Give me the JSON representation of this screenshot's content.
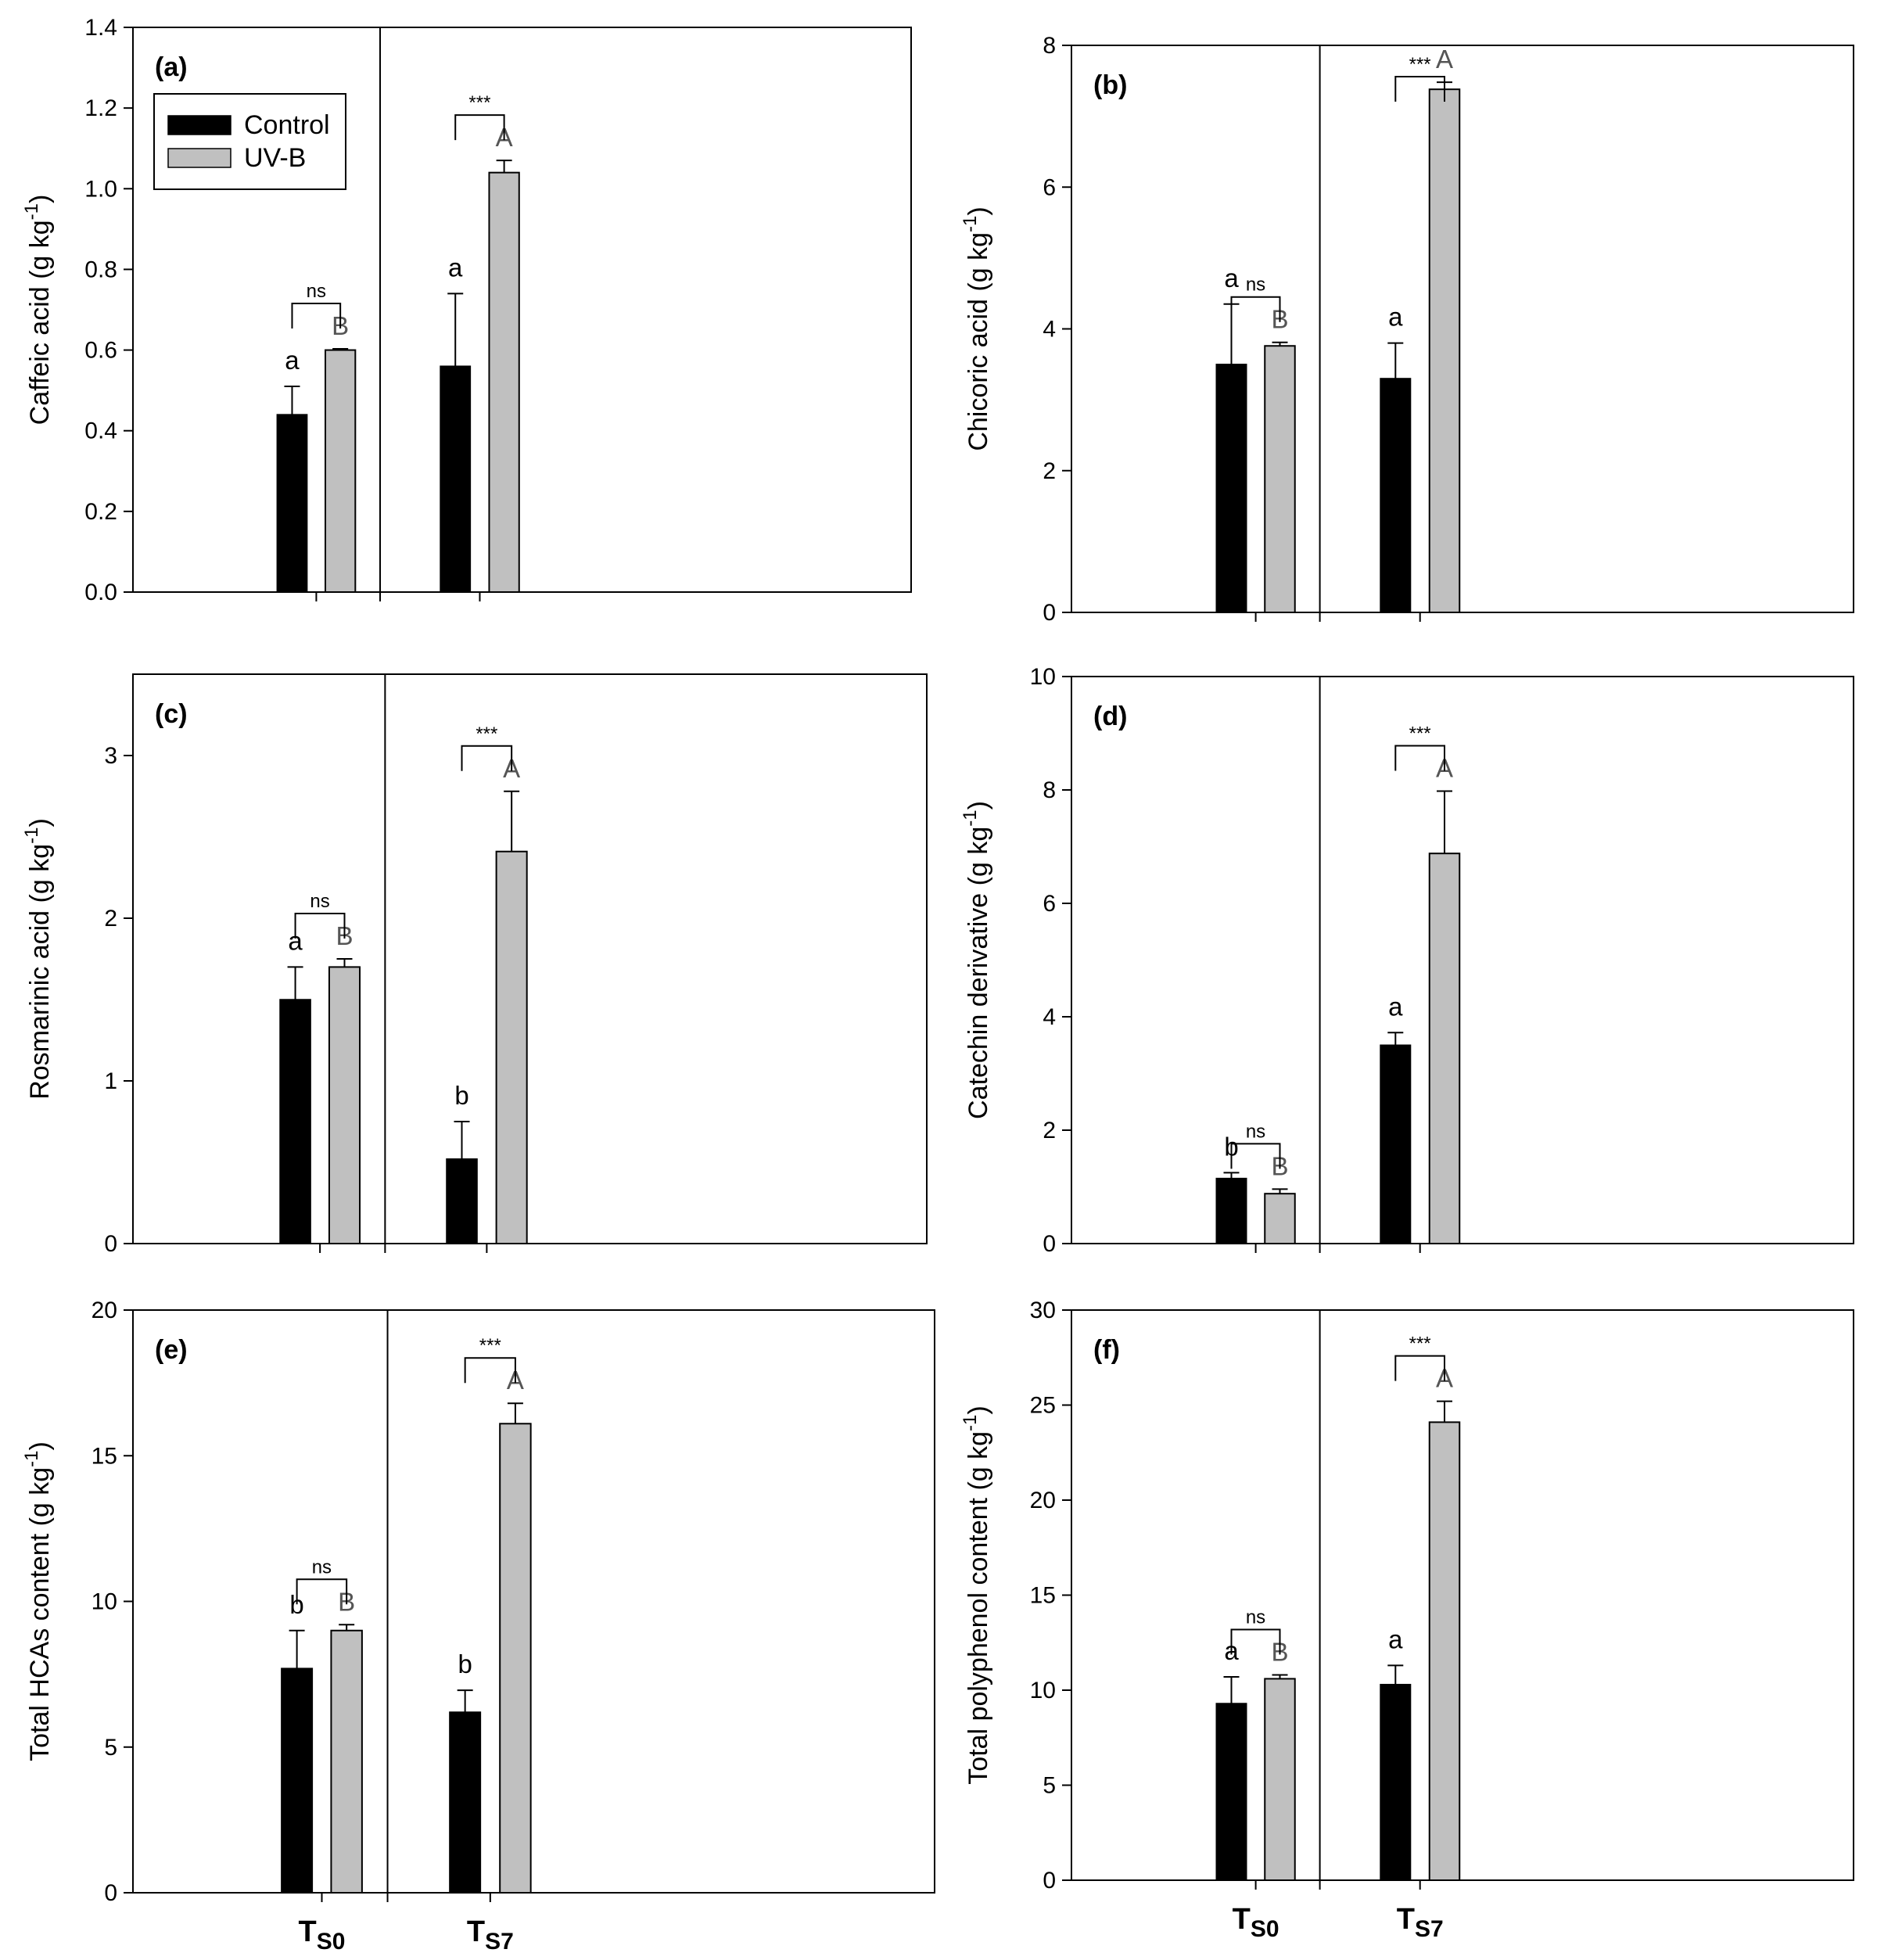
{
  "colors": {
    "control": "#000000",
    "uvb": "#c0c0c0",
    "axis": "#000000",
    "upper_letter": "#555555"
  },
  "legend": {
    "items": [
      {
        "label": "Control",
        "color": "#000000"
      },
      {
        "label": "UV-B",
        "color": "#c0c0c0"
      }
    ]
  },
  "group_labels": [
    {
      "main": "T",
      "sub": "S0"
    },
    {
      "main": "T",
      "sub": "S7"
    }
  ],
  "chart_data": [
    {
      "type": "bar",
      "panel": "(a)",
      "ylabel": "Caffeic acid (g kg-1)",
      "ylabel_main": "Caffeic acid (g kg",
      "ylabel_sup": "-1",
      "ylabel_end": ")",
      "ylim": [
        0,
        1.4
      ],
      "yticks": [
        0.0,
        0.2,
        0.4,
        0.6,
        0.8,
        1.0,
        1.2,
        1.4
      ],
      "ytick_labels": [
        "0.0",
        "0.2",
        "0.4",
        "0.6",
        "0.8",
        "1.0",
        "1.2",
        "1.4"
      ],
      "categories": [
        "TS0",
        "TS7"
      ],
      "series": [
        {
          "name": "Control",
          "values": [
            0.44,
            0.56
          ],
          "errors": [
            0.07,
            0.18
          ]
        },
        {
          "name": "UV-B",
          "values": [
            0.6,
            1.04
          ],
          "errors": [
            0.003,
            0.03
          ]
        }
      ],
      "letters_control": [
        "a",
        "a"
      ],
      "letters_uvb": [
        "B",
        "A"
      ],
      "significance": [
        "ns",
        "***"
      ],
      "legend": true,
      "grid": false
    },
    {
      "type": "bar",
      "panel": "(b)",
      "ylabel": "Chicoric acid (g kg-1)",
      "ylabel_main": "Chicoric acid (g kg",
      "ylabel_sup": "-1",
      "ylabel_end": ")",
      "ylim": [
        0,
        8
      ],
      "yticks": [
        0,
        2,
        4,
        6,
        8
      ],
      "ytick_labels": [
        "0",
        "2",
        "4",
        "6",
        "8"
      ],
      "categories": [
        "TS0",
        "TS7"
      ],
      "series": [
        {
          "name": "Control",
          "values": [
            3.5,
            3.3
          ],
          "errors": [
            0.85,
            0.5
          ]
        },
        {
          "name": "UV-B",
          "values": [
            3.76,
            7.38
          ],
          "errors": [
            0.05,
            0.1
          ]
        }
      ],
      "letters_control": [
        "a",
        "a"
      ],
      "letters_uvb": [
        "B",
        "A"
      ],
      "significance": [
        "ns",
        "***"
      ],
      "legend": false,
      "grid": false
    },
    {
      "type": "bar",
      "panel": "(c)",
      "ylabel": "Rosmarinic acid (g kg-1)",
      "ylabel_main": "Rosmarinic acid (g kg",
      "ylabel_sup": "-1",
      "ylabel_end": ")",
      "ylim": [
        0,
        3.5
      ],
      "yticks": [
        0,
        1,
        2,
        3
      ],
      "ytick_labels": [
        "0",
        "1",
        "2",
        "3"
      ],
      "categories": [
        "TS0",
        "TS7"
      ],
      "series": [
        {
          "name": "Control",
          "values": [
            1.5,
            0.52
          ],
          "errors": [
            0.2,
            0.23
          ]
        },
        {
          "name": "UV-B",
          "values": [
            1.7,
            2.41
          ],
          "errors": [
            0.05,
            0.37
          ]
        }
      ],
      "letters_control": [
        "a",
        "b"
      ],
      "letters_uvb": [
        "B",
        "A"
      ],
      "significance": [
        "ns",
        "***"
      ],
      "legend": false,
      "grid": false
    },
    {
      "type": "bar",
      "panel": "(d)",
      "ylabel": "Catechin derivative (g kg-1)",
      "ylabel_main": "Catechin derivative (g kg",
      "ylabel_sup": "-1",
      "ylabel_end": ")",
      "ylim": [
        0,
        10
      ],
      "yticks": [
        0,
        2,
        4,
        6,
        8,
        10
      ],
      "ytick_labels": [
        "0",
        "2",
        "4",
        "6",
        "8",
        "10"
      ],
      "categories": [
        "TS0",
        "TS7"
      ],
      "series": [
        {
          "name": "Control",
          "values": [
            1.15,
            3.5
          ],
          "errors": [
            0.1,
            0.22
          ]
        },
        {
          "name": "UV-B",
          "values": [
            0.88,
            6.88
          ],
          "errors": [
            0.08,
            1.1
          ]
        }
      ],
      "letters_control": [
        "b",
        "a"
      ],
      "letters_uvb": [
        "B",
        "A"
      ],
      "significance": [
        "ns",
        "***"
      ],
      "legend": false,
      "grid": false
    },
    {
      "type": "bar",
      "panel": "(e)",
      "ylabel": "Total HCAs content (g kg-1)",
      "ylabel_main": "Total HCAs content (g kg",
      "ylabel_sup": "-1",
      "ylabel_end": ")",
      "ylim": [
        0,
        20
      ],
      "yticks": [
        0,
        5,
        10,
        15,
        20
      ],
      "ytick_labels": [
        "0",
        "5",
        "10",
        "15",
        "20"
      ],
      "categories": [
        "TS0",
        "TS7"
      ],
      "series": [
        {
          "name": "Control",
          "values": [
            7.7,
            6.2
          ],
          "errors": [
            1.3,
            0.75
          ]
        },
        {
          "name": "UV-B",
          "values": [
            9.0,
            16.1
          ],
          "errors": [
            0.2,
            0.7
          ]
        }
      ],
      "letters_control": [
        "b",
        "b"
      ],
      "letters_uvb": [
        "B",
        "A"
      ],
      "significance": [
        "ns",
        "***"
      ],
      "legend": false,
      "grid": false
    },
    {
      "type": "bar",
      "panel": "(f)",
      "ylabel": "Total polyphenol content (g kg-1)",
      "ylabel_main": "Total polyphenol content (g kg",
      "ylabel_sup": "-1",
      "ylabel_end": ")",
      "ylim": [
        0,
        30
      ],
      "yticks": [
        0,
        5,
        10,
        15,
        20,
        25,
        30
      ],
      "ytick_labels": [
        "0",
        "5",
        "10",
        "15",
        "20",
        "25",
        "30"
      ],
      "categories": [
        "TS0",
        "TS7"
      ],
      "series": [
        {
          "name": "Control",
          "values": [
            9.3,
            10.3
          ],
          "errors": [
            1.4,
            1.0
          ]
        },
        {
          "name": "UV-B",
          "values": [
            10.6,
            24.1
          ],
          "errors": [
            0.2,
            1.1
          ]
        }
      ],
      "letters_control": [
        "a",
        "a"
      ],
      "letters_uvb": [
        "B",
        "A"
      ],
      "significance": [
        "ns",
        "***"
      ],
      "legend": false,
      "grid": false
    }
  ]
}
